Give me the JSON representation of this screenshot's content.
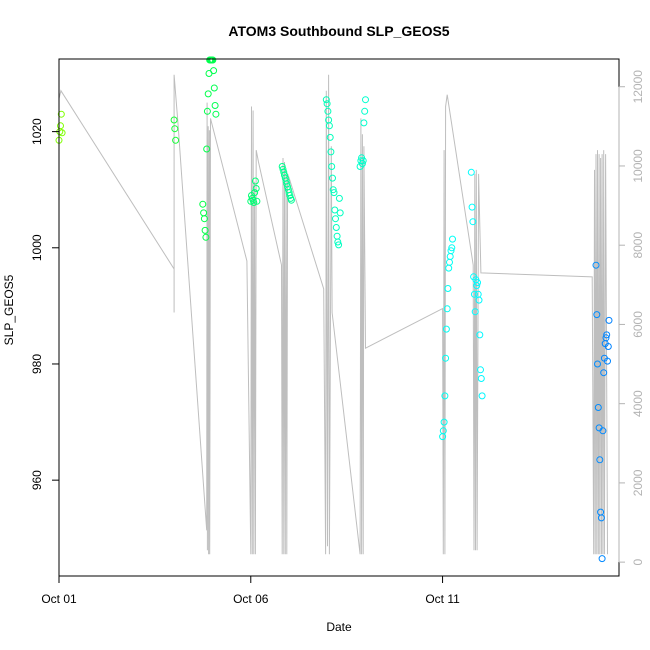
{
  "chart_data": {
    "type": "scatter",
    "title": "ATOM3 Southbound SLP_GEOS5",
    "xlabel": "Date",
    "ylabel": "SLP_GEOS5",
    "xlim": [
      0,
      14.6
    ],
    "ylim": [
      943.5,
      1032.5
    ],
    "y2lim": [
      -350,
      12700
    ],
    "x_ticks": [
      {
        "value": 0,
        "label": "Oct 01"
      },
      {
        "value": 5,
        "label": "Oct 06"
      },
      {
        "value": 10,
        "label": "Oct 11"
      }
    ],
    "y_ticks": [
      960,
      980,
      1000,
      1020
    ],
    "y2_ticks": [
      0,
      2000,
      4000,
      6000,
      8000,
      10000,
      12000
    ],
    "colors": {
      "altitude_line": "#bebebe",
      "axis": "#000000",
      "right_axis": "#b3b3b3",
      "point_gradient": [
        "#80ff00",
        "#00ff40",
        "#00ffc0",
        "#00ffff",
        "#0080ff"
      ]
    },
    "points": [
      [
        0.0,
        1018.5
      ],
      [
        0.02,
        1020.0
      ],
      [
        0.04,
        1021.0
      ],
      [
        0.06,
        1023.0
      ],
      [
        0.08,
        1019.8
      ],
      [
        3.0,
        1022.0
      ],
      [
        3.02,
        1020.5
      ],
      [
        3.04,
        1018.5
      ],
      [
        3.75,
        1007.5
      ],
      [
        3.77,
        1006.0
      ],
      [
        3.79,
        1005.0
      ],
      [
        3.81,
        1003.0
      ],
      [
        3.83,
        1001.8
      ],
      [
        3.85,
        1017.0
      ],
      [
        3.87,
        1023.5
      ],
      [
        3.89,
        1026.5
      ],
      [
        3.91,
        1030.0
      ],
      [
        3.93,
        1033.5
      ],
      [
        3.95,
        1035.8
      ],
      [
        3.97,
        1035.5
      ],
      [
        3.99,
        1033.0
      ],
      [
        4.01,
        1032.5
      ],
      [
        4.03,
        1030.5
      ],
      [
        4.05,
        1027.5
      ],
      [
        4.07,
        1024.5
      ],
      [
        4.09,
        1023.0
      ],
      [
        5.0,
        1008.0
      ],
      [
        5.02,
        1009.0
      ],
      [
        5.04,
        1008.5
      ],
      [
        5.06,
        1008.2
      ],
      [
        5.08,
        1007.8
      ],
      [
        5.1,
        1009.5
      ],
      [
        5.12,
        1011.5
      ],
      [
        5.14,
        1010.2
      ],
      [
        5.16,
        1008.0
      ],
      [
        5.82,
        1014.0
      ],
      [
        5.84,
        1013.5
      ],
      [
        5.86,
        1013.0
      ],
      [
        5.88,
        1012.5
      ],
      [
        5.9,
        1012.0
      ],
      [
        5.92,
        1011.5
      ],
      [
        5.94,
        1011.0
      ],
      [
        5.96,
        1010.5
      ],
      [
        5.98,
        1010.0
      ],
      [
        6.0,
        1009.5
      ],
      [
        6.02,
        1009.0
      ],
      [
        6.04,
        1008.5
      ],
      [
        6.06,
        1008.2
      ],
      [
        6.97,
        1025.5
      ],
      [
        6.99,
        1024.8
      ],
      [
        7.01,
        1023.5
      ],
      [
        7.03,
        1022.0
      ],
      [
        7.05,
        1021.0
      ],
      [
        7.07,
        1019.0
      ],
      [
        7.09,
        1016.5
      ],
      [
        7.11,
        1014.0
      ],
      [
        7.13,
        1012.0
      ],
      [
        7.15,
        1010.0
      ],
      [
        7.17,
        1009.5
      ],
      [
        7.19,
        1006.5
      ],
      [
        7.21,
        1005.0
      ],
      [
        7.23,
        1003.5
      ],
      [
        7.25,
        1002.0
      ],
      [
        7.27,
        1001.0
      ],
      [
        7.29,
        1000.5
      ],
      [
        7.31,
        1008.5
      ],
      [
        7.33,
        1006.0
      ],
      [
        7.85,
        1014.0
      ],
      [
        7.87,
        1015.0
      ],
      [
        7.89,
        1015.5
      ],
      [
        7.91,
        1014.5
      ],
      [
        7.93,
        1015.0
      ],
      [
        7.95,
        1021.5
      ],
      [
        7.97,
        1023.5
      ],
      [
        7.99,
        1025.5
      ],
      [
        10.0,
        967.5
      ],
      [
        10.02,
        968.5
      ],
      [
        10.04,
        970.0
      ],
      [
        10.06,
        974.5
      ],
      [
        10.08,
        981.0
      ],
      [
        10.1,
        986.0
      ],
      [
        10.12,
        989.5
      ],
      [
        10.14,
        993.0
      ],
      [
        10.16,
        996.5
      ],
      [
        10.18,
        997.5
      ],
      [
        10.2,
        998.5
      ],
      [
        10.22,
        999.5
      ],
      [
        10.24,
        1000.0
      ],
      [
        10.26,
        1001.5
      ],
      [
        10.75,
        1013.0
      ],
      [
        10.77,
        1007.0
      ],
      [
        10.79,
        1004.5
      ],
      [
        10.81,
        995.0
      ],
      [
        10.83,
        992.0
      ],
      [
        10.85,
        989.0
      ],
      [
        10.87,
        994.5
      ],
      [
        10.89,
        993.5
      ],
      [
        10.91,
        994.0
      ],
      [
        10.93,
        992.0
      ],
      [
        10.95,
        991.0
      ],
      [
        10.97,
        985.0
      ],
      [
        10.99,
        979.0
      ],
      [
        11.01,
        977.5
      ],
      [
        11.03,
        974.5
      ],
      [
        14.0,
        997.0
      ],
      [
        14.02,
        988.5
      ],
      [
        14.04,
        980.0
      ],
      [
        14.06,
        972.5
      ],
      [
        14.08,
        969.0
      ],
      [
        14.1,
        963.5
      ],
      [
        14.12,
        954.5
      ],
      [
        14.14,
        953.5
      ],
      [
        14.16,
        946.5
      ],
      [
        14.18,
        968.5
      ],
      [
        14.2,
        978.5
      ],
      [
        14.22,
        981.0
      ],
      [
        14.24,
        983.5
      ],
      [
        14.26,
        984.5
      ],
      [
        14.28,
        985.0
      ],
      [
        14.3,
        980.5
      ],
      [
        14.32,
        983.0
      ],
      [
        14.34,
        987.5
      ]
    ],
    "altitude_path": [
      [
        0.0,
        1500
      ],
      [
        0.0,
        11700
      ],
      [
        0.05,
        11900
      ],
      [
        3.0,
        7400
      ],
      [
        3.0,
        7500
      ],
      [
        3.0,
        6300
      ],
      [
        3.0,
        12300
      ],
      [
        3.1,
        11100
      ],
      [
        3.85,
        800
      ],
      [
        3.86,
        11600
      ],
      [
        3.87,
        300
      ],
      [
        3.89,
        11000
      ],
      [
        3.9,
        200
      ],
      [
        3.92,
        10900
      ],
      [
        3.93,
        200
      ],
      [
        3.95,
        11200
      ],
      [
        4.9,
        7600
      ],
      [
        5.0,
        200
      ],
      [
        5.02,
        11500
      ],
      [
        5.04,
        200
      ],
      [
        5.06,
        11400
      ],
      [
        5.08,
        200
      ],
      [
        5.1,
        9600
      ],
      [
        5.12,
        200
      ],
      [
        5.14,
        10400
      ],
      [
        5.2,
        10100
      ],
      [
        5.8,
        7500
      ],
      [
        5.82,
        200
      ],
      [
        5.84,
        10200
      ],
      [
        5.86,
        200
      ],
      [
        5.88,
        10100
      ],
      [
        5.9,
        200
      ],
      [
        5.92,
        9900
      ],
      [
        5.94,
        200
      ],
      [
        5.96,
        9800
      ],
      [
        6.0,
        9700
      ],
      [
        6.9,
        6900
      ],
      [
        6.95,
        200
      ],
      [
        6.97,
        11900
      ],
      [
        7.0,
        400
      ],
      [
        7.03,
        12300
      ],
      [
        7.05,
        200
      ],
      [
        7.1,
        10500
      ],
      [
        7.12,
        6300
      ],
      [
        7.85,
        200
      ],
      [
        7.87,
        11200
      ],
      [
        7.89,
        200
      ],
      [
        7.91,
        10800
      ],
      [
        7.93,
        200
      ],
      [
        7.95,
        10500
      ],
      [
        7.99,
        5400
      ],
      [
        10.0,
        6400
      ],
      [
        10.02,
        200
      ],
      [
        10.04,
        10400
      ],
      [
        10.06,
        200
      ],
      [
        10.08,
        11500
      ],
      [
        10.12,
        11800
      ],
      [
        10.8,
        7500
      ],
      [
        10.82,
        300
      ],
      [
        10.84,
        9800
      ],
      [
        10.86,
        300
      ],
      [
        10.88,
        9900
      ],
      [
        10.9,
        300
      ],
      [
        10.94,
        9800
      ],
      [
        11.0,
        7300
      ],
      [
        13.9,
        7200
      ],
      [
        13.94,
        200
      ],
      [
        13.96,
        9900
      ],
      [
        13.98,
        200
      ],
      [
        14.0,
        10300
      ],
      [
        14.02,
        200
      ],
      [
        14.04,
        10400
      ],
      [
        14.06,
        200
      ],
      [
        14.08,
        10300
      ],
      [
        14.1,
        200
      ],
      [
        14.12,
        10200
      ],
      [
        14.14,
        200
      ],
      [
        14.16,
        10300
      ],
      [
        14.18,
        200
      ],
      [
        14.2,
        10400
      ],
      [
        14.22,
        200
      ],
      [
        14.25,
        10300
      ],
      [
        14.3,
        200
      ]
    ]
  }
}
